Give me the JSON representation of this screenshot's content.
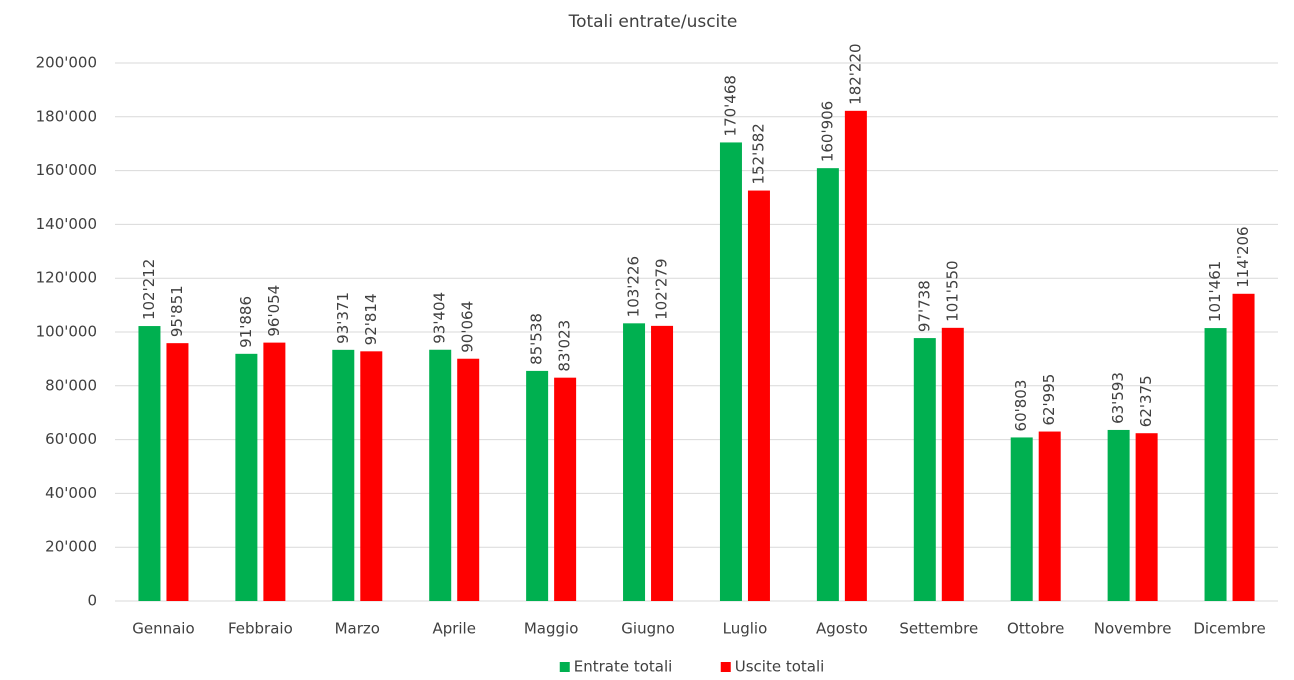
{
  "chart_data": {
    "type": "bar",
    "title": "Totali entrate/uscite",
    "categories": [
      "Gennaio",
      "Febbraio",
      "Marzo",
      "Aprile",
      "Maggio",
      "Giugno",
      "Luglio",
      "Agosto",
      "Settembre",
      "Ottobre",
      "Novembre",
      "Dicembre"
    ],
    "series": [
      {
        "name": "Entrate totali",
        "color": "#00b050",
        "values": [
          102212,
          91886,
          93371,
          93404,
          85538,
          103226,
          170468,
          160906,
          97738,
          60803,
          63593,
          101461
        ],
        "value_labels": [
          "102'212",
          "91'886",
          "93'371",
          "93'404",
          "85'538",
          "103'226",
          "170'468",
          "160'906",
          "97'738",
          "60'803",
          "63'593",
          "101'461"
        ]
      },
      {
        "name": "Uscite totali",
        "color": "#ff0000",
        "values": [
          95851,
          96054,
          92814,
          90064,
          83023,
          102279,
          152582,
          182220,
          101550,
          62995,
          62375,
          114206
        ],
        "value_labels": [
          "95'851",
          "96'054",
          "92'814",
          "90'064",
          "83'023",
          "102'279",
          "152'582",
          "182'220",
          "101'550",
          "62'995",
          "62'375",
          "114'206"
        ]
      }
    ],
    "ylim": [
      0,
      200000
    ],
    "yticks": [
      0,
      {
        "value": 20000,
        "label": "20'000"
      },
      {
        "value": 40000,
        "label": "40'000"
      },
      {
        "value": 60000,
        "label": "60'000"
      },
      {
        "value": 80000,
        "label": "80'000"
      },
      {
        "value": 100000,
        "label": "100'000"
      },
      {
        "value": 120000,
        "label": "120'000"
      },
      {
        "value": 140000,
        "label": "140'000"
      },
      {
        "value": 160000,
        "label": "160'000"
      },
      {
        "value": 180000,
        "label": "180'000"
      },
      {
        "value": 200000,
        "label": "200'000"
      }
    ],
    "grid": true,
    "legend": "bottom"
  }
}
